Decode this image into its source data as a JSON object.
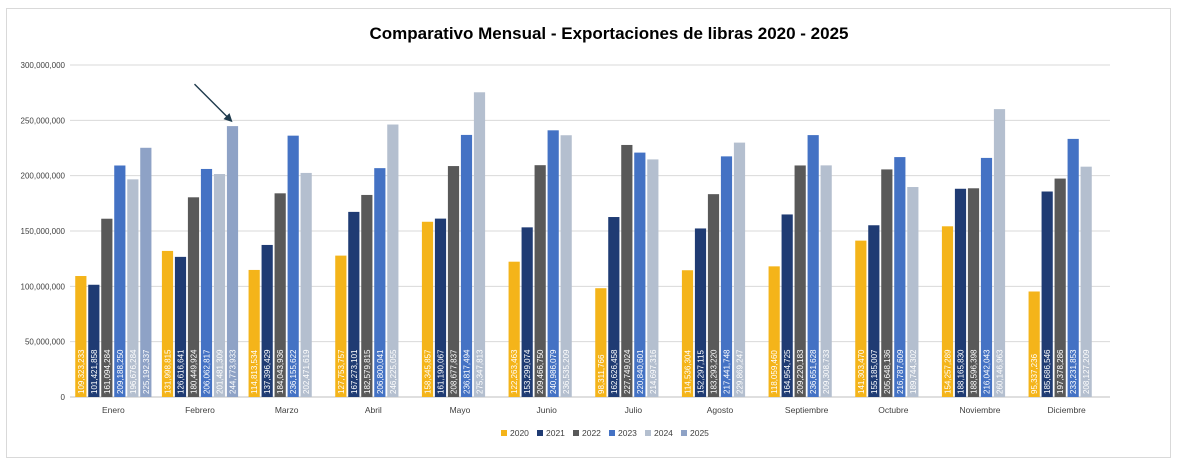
{
  "chart_data": {
    "type": "bar",
    "title": "Comparativo Mensual - Exportaciones de libras 2020 - 2025",
    "xlabel": "",
    "ylabel": "",
    "ylim": [
      0,
      300000000
    ],
    "yticks": [
      "0",
      "50,000,000",
      "100,000,000",
      "150,000,000",
      "200,000,000",
      "250,000,000",
      "300,000,000"
    ],
    "grid": true,
    "legend_position": "bottom",
    "categories": [
      "Enero",
      "Febrero",
      "Marzo",
      "Abril",
      "Mayo",
      "Junio",
      "Julio",
      "Agosto",
      "Septiembre",
      "Octubre",
      "Noviembre",
      "Diciembre"
    ],
    "series": [
      {
        "name": "2020",
        "color": "#f4b41a",
        "values": [
          109323233,
          131998815,
          114813534,
          127753757,
          158345857,
          122263463,
          98311766,
          114536304,
          118059460,
          141303470,
          154257289,
          95337236
        ],
        "labels": [
          "109,323,233",
          "131,998,815",
          "114,813,534",
          "127,753,757",
          "158,345,857",
          "122,263,463",
          "98,311,766",
          "114,536,304",
          "118,059,460",
          "141,303,470",
          "154,257,289",
          "95,337,236"
        ]
      },
      {
        "name": "2021",
        "color": "#1f3b73",
        "values": [
          101421858,
          126616641,
          137396429,
          167273101,
          161190067,
          153299074,
          162626458,
          152297115,
          164954725,
          155185007,
          188165830,
          185686546
        ],
        "labels": [
          "101,421,858",
          "126,616,641",
          "137,396,429",
          "167,273,101",
          "161,190,067",
          "153,299,074",
          "162,626,458",
          "152,297,115",
          "164,954,725",
          "155,185,007",
          "188,165,830",
          "185,686,546"
        ]
      },
      {
        "name": "2022",
        "color": "#595959",
        "values": [
          161094284,
          180449924,
          184043936,
          182579815,
          208677837,
          209466750,
          227749024,
          183293220,
          209220183,
          205648136,
          188596398,
          197378286
        ],
        "labels": [
          "161,094,284",
          "180,449,924",
          "184,043,936",
          "182,579,815",
          "208,677,837",
          "209,466,750",
          "227,749,024",
          "183,293,220",
          "209,220,183",
          "205,648,136",
          "188,596,398",
          "197,378,286"
        ]
      },
      {
        "name": "2023",
        "color": "#4472c4",
        "values": [
          209188250,
          206062817,
          236155622,
          206800041,
          236817494,
          240986079,
          220840601,
          217441748,
          236651628,
          216787609,
          216042043,
          233231853
        ],
        "labels": [
          "209,188,250",
          "206,062,817",
          "236,155,622",
          "206,800,041",
          "236,817,494",
          "240,986,079",
          "220,840,601",
          "217,441,748",
          "236,651,628",
          "216,787,609",
          "216,042,043",
          "233,231,853"
        ]
      },
      {
        "name": "2024",
        "color": "#b4bfcf",
        "values": [
          196676284,
          201481309,
          202471619,
          246225055,
          275347813,
          236535209,
          214697316,
          229869247,
          209308733,
          189744302,
          260146963,
          208127209
        ],
        "labels": [
          "196,676,284",
          "201,481,309",
          "202,471,619",
          "246,225,055",
          "275,347,813",
          "236,535,209",
          "214,697,316",
          "229,869,247",
          "209,308,733",
          "189,744,302",
          "260,146,963",
          "208,127,209"
        ]
      },
      {
        "name": "2025",
        "color": "#8ea2c6",
        "values": [
          225192337,
          244773933,
          null,
          null,
          null,
          null,
          null,
          null,
          null,
          null,
          null,
          null
        ],
        "labels": [
          "225,192,337",
          "244,773,933",
          "",
          "",
          "",
          "",
          "",
          "",
          "",
          "",
          "",
          ""
        ]
      }
    ],
    "annotations": [
      "arrow pointing to Febrero 2025 bar"
    ]
  }
}
